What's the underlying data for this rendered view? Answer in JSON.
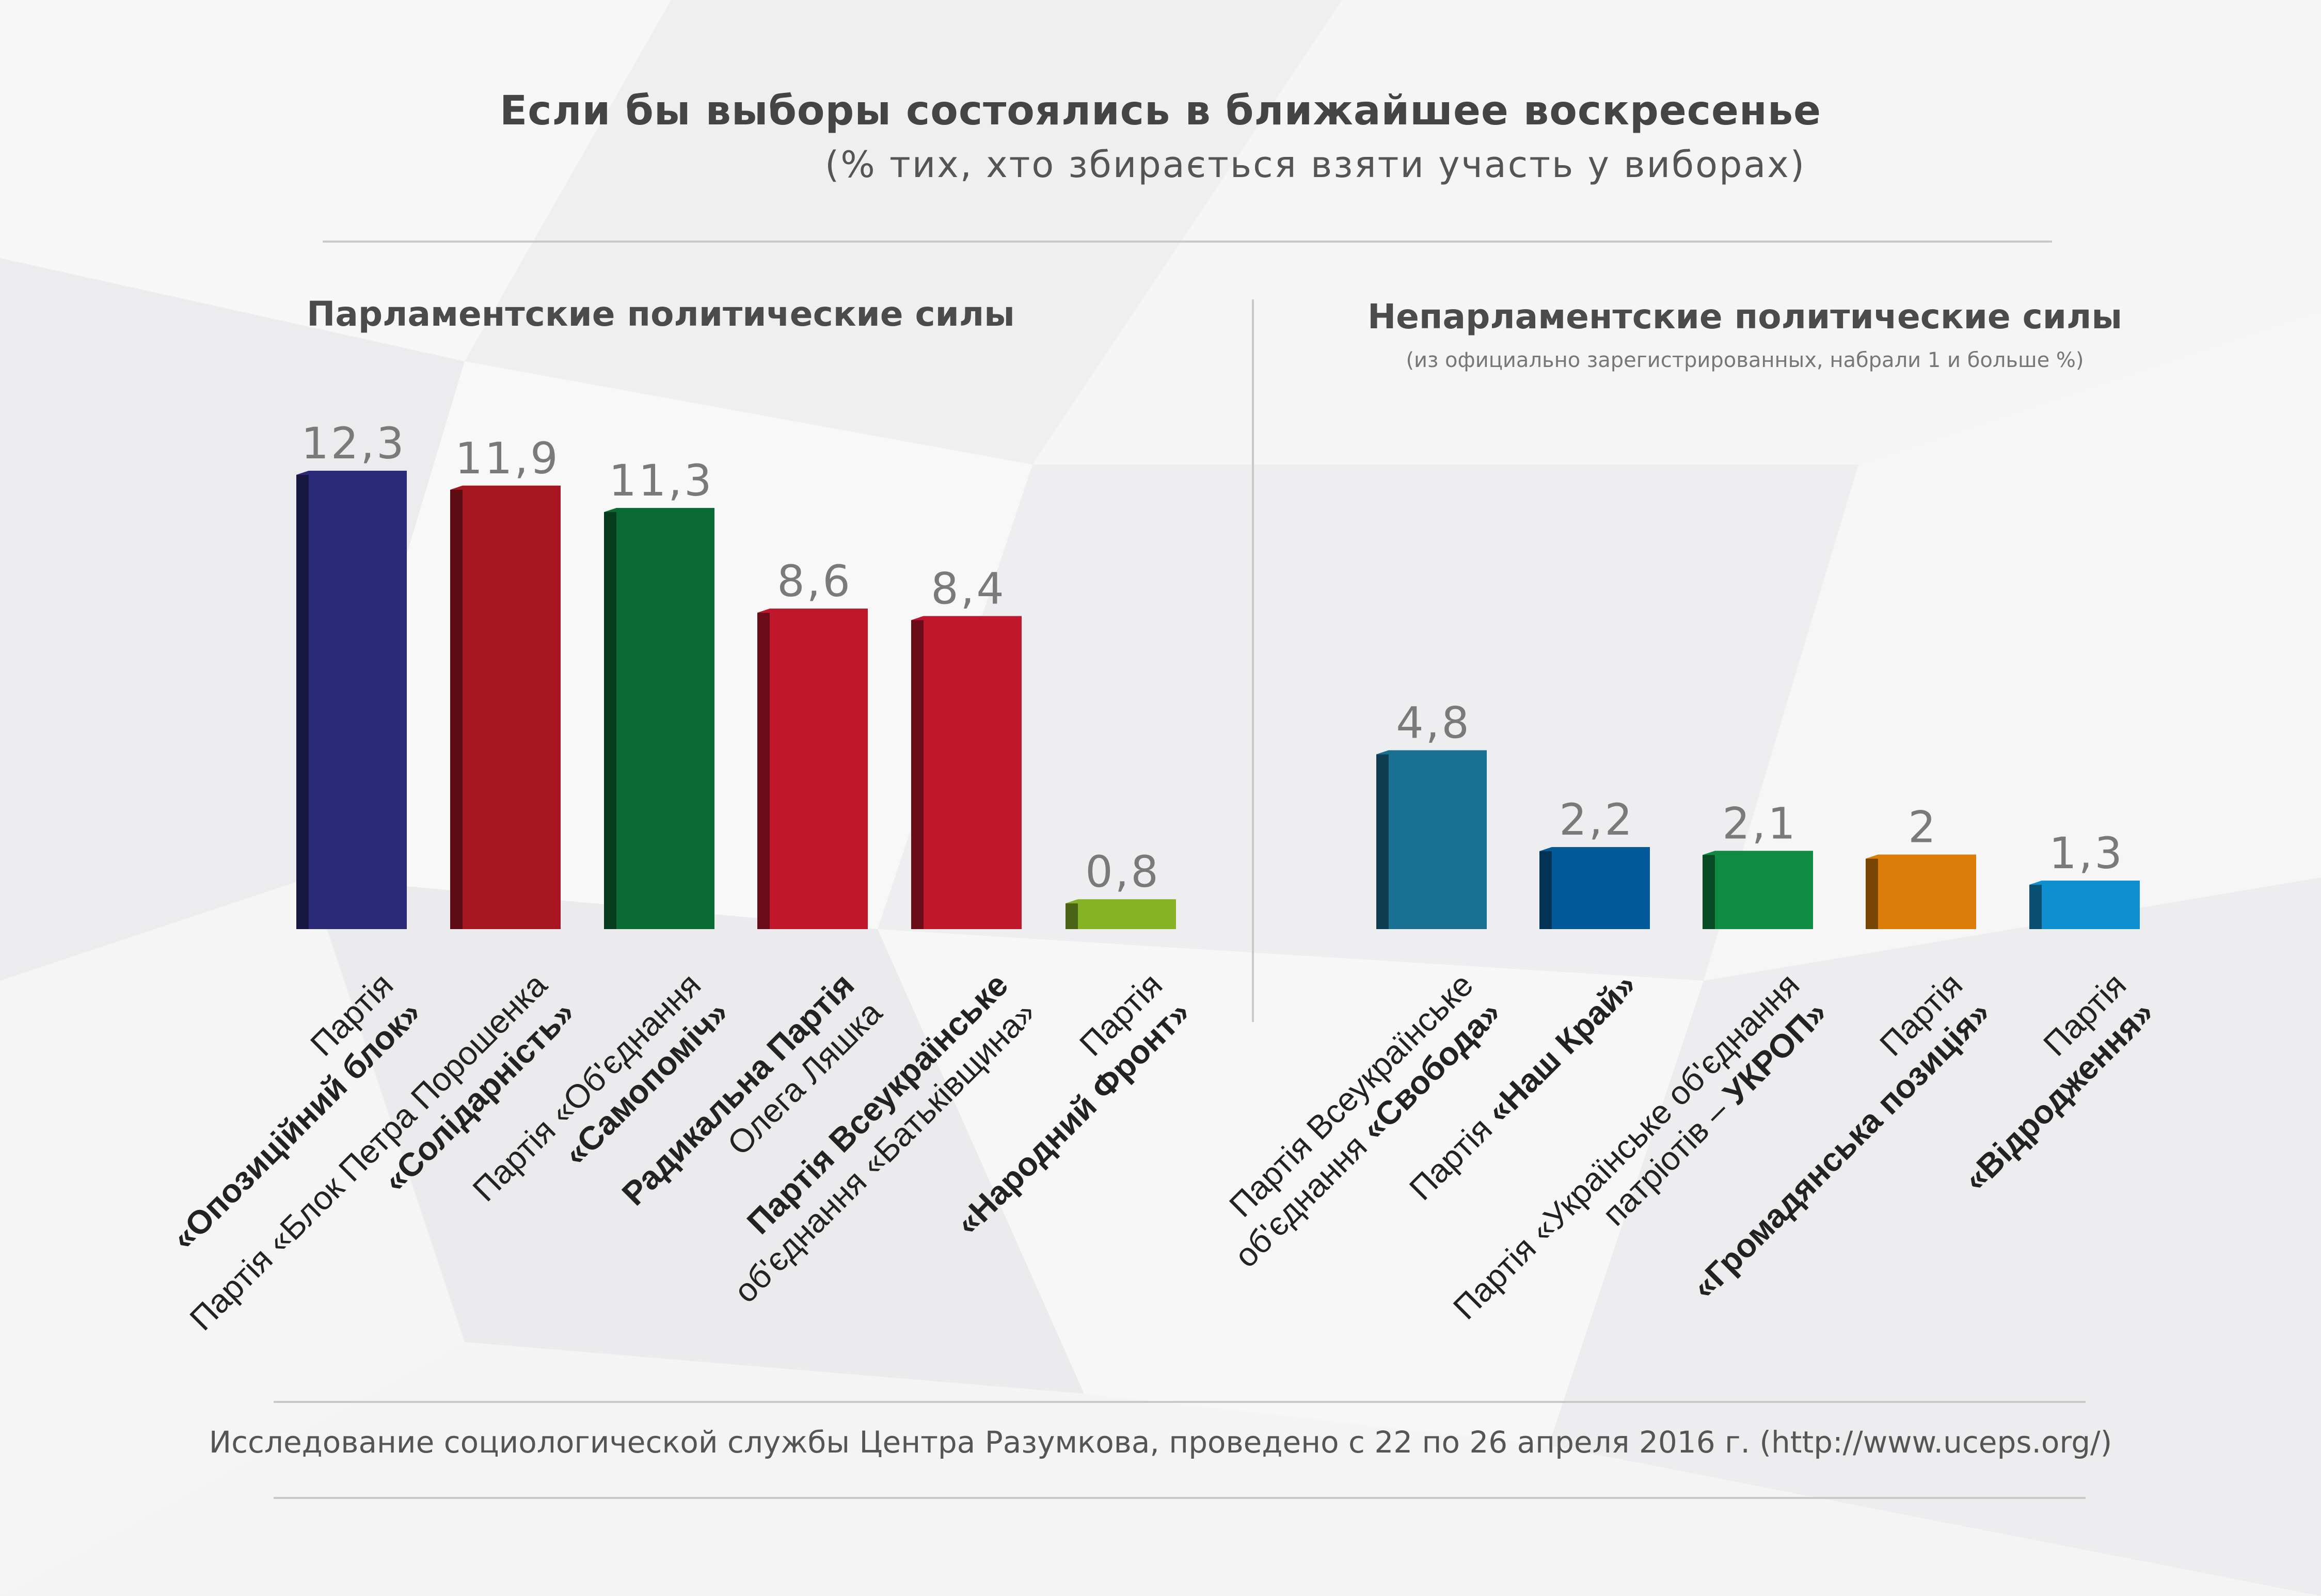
{
  "header": {
    "title": "Если бы выборы состоялись в ближайшее воскресенье",
    "subtitle": "(% тих, хто збирається взяти участь у виборах)"
  },
  "sections": {
    "left": "Парламентские политические силы",
    "right": "Непарламентские политические силы",
    "right_note": "(из официально зарегистрированных, набрали 1 и больше %)"
  },
  "footer": "Исследование социологической службы Центра Разумкова, проведено с 22 по 26 апреля 2016 г. (http://www.uceps.org/)",
  "chart_data": [
    {
      "type": "bar",
      "title": "Парламентские политические силы",
      "categories": [
        "Партія «Опозиційний блок»",
        "Партія «Блок Петра Порошенка «Солідарність»",
        "Партія «Об'єднання «Самопоміч»",
        "Радикальна Партія Олега Ляшка",
        "Партія Всеукраїнське об'єднання «Батьківщина»",
        "Партія «Народний Фронт»"
      ],
      "values": [
        12.3,
        11.9,
        11.3,
        8.6,
        8.4,
        0.8
      ],
      "value_labels": [
        "12,3",
        "11,9",
        "11,3",
        "8,6",
        "8,4",
        "0,8"
      ],
      "colors": [
        "#2a2a78",
        "#a81621",
        "#0b6b35",
        "#c1172c",
        "#c1172c",
        "#86b226"
      ],
      "label_lines": [
        [
          [
            {
              "t": "Партія",
              "b": false
            }
          ],
          [
            {
              "t": "«Опозиційний блок»",
              "b": true
            }
          ]
        ],
        [
          [
            {
              "t": "Партія «Блок Петра Порошенка",
              "b": false
            }
          ],
          [
            {
              "t": "«Солідарність»",
              "b": true
            }
          ]
        ],
        [
          [
            {
              "t": "Партія «Об'єднання",
              "b": false
            }
          ],
          [
            {
              "t": "«Самопоміч»",
              "b": true
            }
          ]
        ],
        [
          [
            {
              "t": "Радикальна Партія",
              "b": true
            }
          ],
          [
            {
              "t": "Олега Ляшка",
              "b": false
            }
          ]
        ],
        [
          [
            {
              "t": "Партія Всеукраїнське",
              "b": true
            }
          ],
          [
            {
              "t": "об'єднання «Батьківщина»",
              "b": false
            }
          ]
        ],
        [
          [
            {
              "t": "Партія",
              "b": false
            }
          ],
          [
            {
              "t": "«Народний Фронт»",
              "b": true
            }
          ]
        ]
      ]
    },
    {
      "type": "bar",
      "title": "Непарламентские политические силы",
      "categories": [
        "Партія Всеукраїнське об'єднання «Свобода»",
        "Партія «Наш Край»",
        "Партія «Українське об'єднання патріотів – УКРОП»",
        "Партія «Громадянська позиція»",
        "Партія «Відродження»"
      ],
      "values": [
        4.8,
        2.2,
        2.1,
        2,
        1.3
      ],
      "value_labels": [
        "4,8",
        "2,2",
        "2,1",
        "2",
        "1,3"
      ],
      "colors": [
        "#1a7092",
        "#045a98",
        "#0f8b43",
        "#db7d08",
        "#0e8fcf"
      ],
      "label_lines": [
        [
          [
            {
              "t": "Партія Всеукраїнське",
              "b": false
            }
          ],
          [
            {
              "t": "об'єднання ",
              "b": false
            },
            {
              "t": "«Свобода»",
              "b": true
            }
          ]
        ],
        [
          [
            {
              "t": "Партія ",
              "b": false
            },
            {
              "t": "«Наш Край»",
              "b": true
            }
          ]
        ],
        [
          [
            {
              "t": "Партія «Українське об'єднання",
              "b": false
            }
          ],
          [
            {
              "t": "патріотів – ",
              "b": false
            },
            {
              "t": "УКРОП»",
              "b": true
            }
          ]
        ],
        [
          [
            {
              "t": "Партія",
              "b": false
            }
          ],
          [
            {
              "t": "«Громадянська позиція»",
              "b": true
            }
          ]
        ],
        [
          [
            {
              "t": "Партія",
              "b": false
            }
          ],
          [
            {
              "t": "«Відродження»",
              "b": true
            }
          ]
        ]
      ]
    }
  ]
}
